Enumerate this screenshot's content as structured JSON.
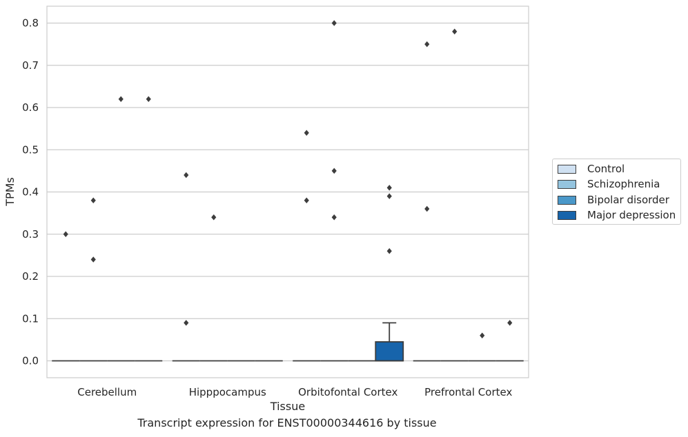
{
  "chart_data": {
    "type": "box",
    "title": "",
    "caption": "Transcript expression for ENST00000344616 by tissue",
    "xlabel": "Tissue",
    "ylabel": "TPMs",
    "ylim": [
      -0.04,
      0.84
    ],
    "yticks": [
      "0.0",
      "0.1",
      "0.2",
      "0.3",
      "0.4",
      "0.5",
      "0.6",
      "0.7",
      "0.8"
    ],
    "grid": true,
    "legend_position": "right",
    "categories": [
      "Cerebellum",
      "Hipppocampus",
      "Orbitofontal Cortex",
      "Prefrontal Cortex"
    ],
    "series": [
      {
        "name": "Control",
        "color": "#d0e1f2"
      },
      {
        "name": "Schizophrenia",
        "color": "#94c4df"
      },
      {
        "name": "Bipolar disorder",
        "color": "#4a98c9"
      },
      {
        "name": "Major depression",
        "color": "#1764ab"
      }
    ],
    "boxes": [
      {
        "category": 0,
        "series": 0,
        "q1": 0,
        "median": 0,
        "q3": 0,
        "whisker_low": 0,
        "whisker_high": 0,
        "outliers": [
          0.3
        ]
      },
      {
        "category": 0,
        "series": 1,
        "q1": 0,
        "median": 0,
        "q3": 0,
        "whisker_low": 0,
        "whisker_high": 0,
        "outliers": [
          0.38,
          0.24
        ]
      },
      {
        "category": 0,
        "series": 2,
        "q1": 0,
        "median": 0,
        "q3": 0,
        "whisker_low": 0,
        "whisker_high": 0,
        "outliers": [
          0.62
        ]
      },
      {
        "category": 0,
        "series": 3,
        "q1": 0,
        "median": 0,
        "q3": 0,
        "whisker_low": 0,
        "whisker_high": 0,
        "outliers": [
          0.62
        ]
      },
      {
        "category": 1,
        "series": 0,
        "q1": 0,
        "median": 0,
        "q3": 0,
        "whisker_low": 0,
        "whisker_high": 0,
        "outliers": [
          0.44,
          0.09
        ]
      },
      {
        "category": 1,
        "series": 1,
        "q1": 0,
        "median": 0,
        "q3": 0,
        "whisker_low": 0,
        "whisker_high": 0,
        "outliers": [
          0.34
        ]
      },
      {
        "category": 1,
        "series": 2,
        "q1": 0,
        "median": 0,
        "q3": 0,
        "whisker_low": 0,
        "whisker_high": 0,
        "outliers": []
      },
      {
        "category": 1,
        "series": 3,
        "q1": 0,
        "median": 0,
        "q3": 0,
        "whisker_low": 0,
        "whisker_high": 0,
        "outliers": []
      },
      {
        "category": 2,
        "series": 0,
        "q1": 0,
        "median": 0,
        "q3": 0,
        "whisker_low": 0,
        "whisker_high": 0,
        "outliers": [
          0.54,
          0.38
        ]
      },
      {
        "category": 2,
        "series": 1,
        "q1": 0,
        "median": 0,
        "q3": 0,
        "whisker_low": 0,
        "whisker_high": 0,
        "outliers": [
          0.8,
          0.45,
          0.34
        ]
      },
      {
        "category": 2,
        "series": 2,
        "q1": 0,
        "median": 0,
        "q3": 0,
        "whisker_low": 0,
        "whisker_high": 0,
        "outliers": []
      },
      {
        "category": 2,
        "series": 3,
        "q1": 0,
        "median": 0,
        "q3": 0.045,
        "whisker_low": 0,
        "whisker_high": 0.09,
        "outliers": [
          0.41,
          0.39,
          0.26
        ]
      },
      {
        "category": 3,
        "series": 0,
        "q1": 0,
        "median": 0,
        "q3": 0,
        "whisker_low": 0,
        "whisker_high": 0,
        "outliers": [
          0.75,
          0.36
        ]
      },
      {
        "category": 3,
        "series": 1,
        "q1": 0,
        "median": 0,
        "q3": 0,
        "whisker_low": 0,
        "whisker_high": 0,
        "outliers": [
          0.78
        ]
      },
      {
        "category": 3,
        "series": 2,
        "q1": 0,
        "median": 0,
        "q3": 0,
        "whisker_low": 0,
        "whisker_high": 0,
        "outliers": [
          0.06
        ]
      },
      {
        "category": 3,
        "series": 3,
        "q1": 0,
        "median": 0,
        "q3": 0,
        "whisker_low": 0,
        "whisker_high": 0,
        "outliers": [
          0.09
        ]
      }
    ]
  }
}
